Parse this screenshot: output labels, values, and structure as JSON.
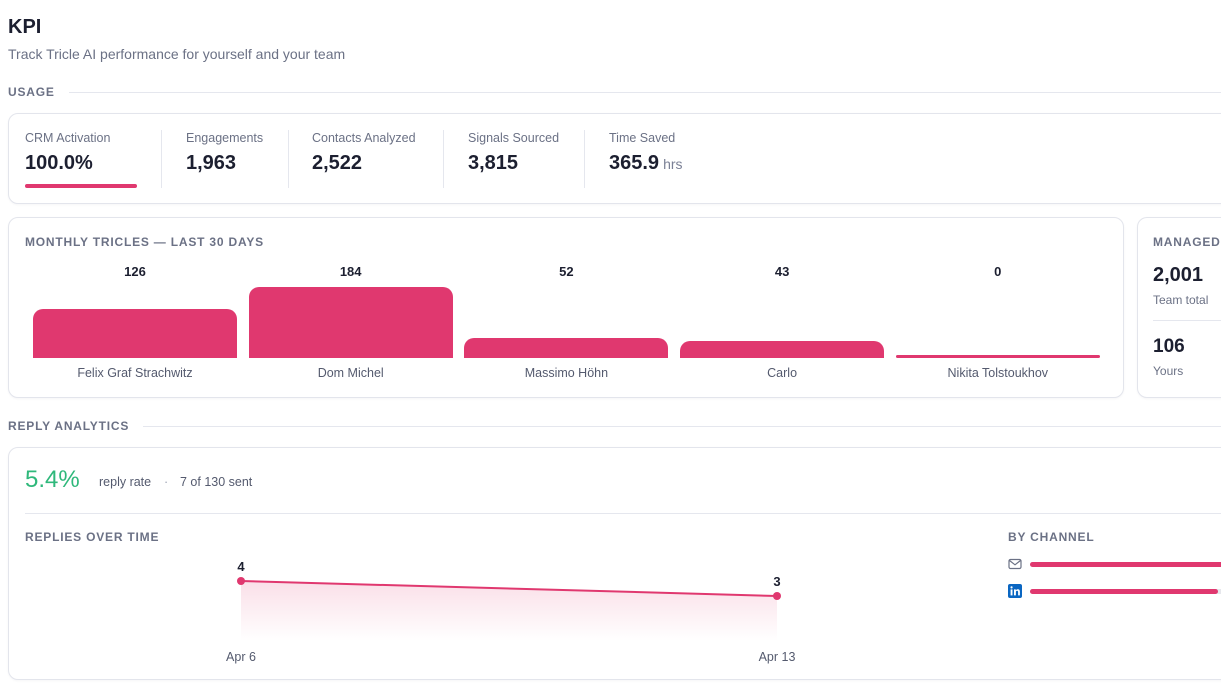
{
  "header": {
    "title": "KPI",
    "subtitle": "Track Tricle AI performance for yourself and your team"
  },
  "sections": {
    "usage": "USAGE",
    "reply_analytics": "REPLY ANALYTICS"
  },
  "usage": {
    "stats": [
      {
        "label": "CRM Activation",
        "value": "100.0%",
        "unit": ""
      },
      {
        "label": "Engagements",
        "value": "1,963",
        "unit": ""
      },
      {
        "label": "Contacts Analyzed",
        "value": "2,522",
        "unit": ""
      },
      {
        "label": "Signals Sourced",
        "value": "3,815",
        "unit": ""
      },
      {
        "label": "Time Saved",
        "value": "365.9",
        "unit": "hrs"
      }
    ],
    "crm_activation_progress": 1.0
  },
  "monthly": {
    "title": "MONTHLY TRICLES — LAST 30 DAYS"
  },
  "managed": {
    "title": "MANAGED",
    "team_value": "2,001",
    "team_label": "Team total",
    "yours_value": "106",
    "yours_label": "Yours"
  },
  "reply": {
    "rate": "5.4%",
    "rate_label": "reply rate",
    "separator": "·",
    "sent": "7 of 130 sent",
    "over_time_title": "REPLIES OVER TIME",
    "by_channel_title": "BY CHANNEL",
    "channels": [
      {
        "icon": "mail-icon",
        "share": 1.0
      },
      {
        "icon": "linkedin-icon",
        "share": 0.92
      }
    ]
  },
  "chart_data": [
    {
      "type": "bar",
      "title": "MONTHLY TRICLES — LAST 30 DAYS",
      "categories": [
        "Felix Graf Strachwitz",
        "Dom Michel",
        "Massimo Höhn",
        "Carlo",
        "Nikita Tolstoukhov"
      ],
      "values": [
        126,
        184,
        52,
        43,
        0
      ],
      "value_labels": [
        "126",
        "184",
        "52",
        "43",
        "0"
      ],
      "color": "#e0386f"
    },
    {
      "type": "line",
      "title": "REPLIES OVER TIME",
      "x": [
        "Apr 6",
        "Apr 13"
      ],
      "values": [
        4,
        3
      ],
      "value_labels": [
        "4",
        "3"
      ],
      "color": "#e0386f"
    }
  ]
}
